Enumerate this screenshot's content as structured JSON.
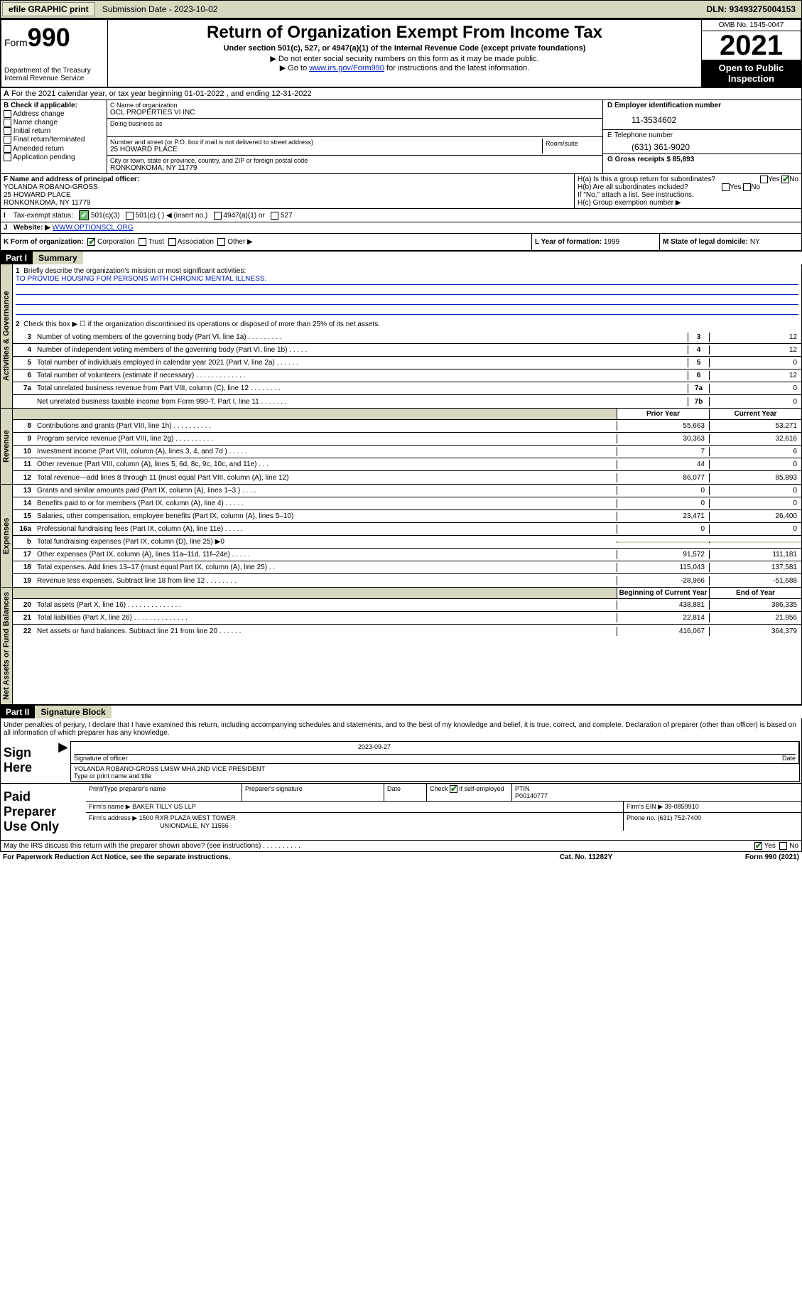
{
  "topBar": {
    "efile": "efile GRAPHIC print",
    "submission": "Submission Date - 2023-10-02",
    "dln": "DLN: 93493275004153"
  },
  "header": {
    "formWord": "Form",
    "formNum": "990",
    "dept": "Department of the Treasury Internal Revenue Service",
    "title": "Return of Organization Exempt From Income Tax",
    "sub": "Under section 501(c), 527, or 4947(a)(1) of the Internal Revenue Code (except private foundations)",
    "note1": "▶ Do not enter social security numbers on this form as it may be made public.",
    "note2a": "▶ Go to ",
    "note2link": "www.irs.gov/Form990",
    "note2b": " for instructions and the latest information.",
    "omb": "OMB No. 1545-0047",
    "year": "2021",
    "open": "Open to Public Inspection"
  },
  "rowA": "For the 2021 calendar year, or tax year beginning 01-01-2022   , and ending 12-31-2022",
  "boxB": {
    "label": "B Check if applicable:",
    "items": [
      "Address change",
      "Name change",
      "Initial return",
      "Final return/terminated",
      "Amended return",
      "Application pending"
    ]
  },
  "boxC": {
    "nameLbl": "C Name of organization",
    "name": "OCL PROPERTIES VI INC",
    "dbaLbl": "Doing business as",
    "streetLbl": "Number and street (or P.O. box if mail is not delivered to street address)",
    "street": "25 HOWARD PLACE",
    "roomLbl": "Room/suite",
    "cityLbl": "City or town, state or province, country, and ZIP or foreign postal code",
    "city": "RONKONKOMA, NY  11779"
  },
  "boxD": {
    "einLbl": "D Employer identification number",
    "ein": "11-3534602",
    "phoneLbl": "E Telephone number",
    "phone": "(631) 361-9020",
    "grossLbl": "G Gross receipts $ ",
    "gross": "85,893"
  },
  "boxF": {
    "lbl": "F Name and address of principal officer:",
    "name": "YOLANDA ROBANO-GROSS",
    "addr1": "25 HOWARD PLACE",
    "addr2": "RONKONKOMA, NY  11779"
  },
  "boxH": {
    "ha": "H(a)  Is this a group return for subordinates?",
    "hb": "H(b)  Are all subordinates included?",
    "hbNote": "If \"No,\" attach a list. See instructions.",
    "hc": "H(c)  Group exemption number ▶"
  },
  "rowI": {
    "lbl": "Tax-exempt status:",
    "o1": "501(c)(3)",
    "o2": "501(c) (  ) ◀ (insert no.)",
    "o3": "4947(a)(1) or",
    "o4": "527"
  },
  "rowJ": {
    "lbl": "Website: ▶",
    "val": "WWW.OPTIONSCL.ORG"
  },
  "rowK": {
    "k1": "K Form of organization:",
    "corp": "Corporation",
    "trust": "Trust",
    "assoc": "Association",
    "other": "Other ▶",
    "k2lbl": "L Year of formation: ",
    "k2val": "1999",
    "k3lbl": "M State of legal domicile: ",
    "k3val": "NY"
  },
  "part1": {
    "hdr": "Part I",
    "title": "Summary"
  },
  "mission": {
    "q1": "Briefly describe the organization's mission or most significant activities:",
    "text": "TO PROVIDE HOUSING FOR PERSONS WITH CHRONIC MENTAL ILLNESS.",
    "q2": "Check this box ▶ ☐  if the organization discontinued its operations or disposed of more than 25% of its net assets."
  },
  "govRows": [
    {
      "n": "3",
      "t": "Number of voting members of the governing body (Part VI, line 1a)   .    .    .    .    .    .    .    .    .",
      "b": "3",
      "v": "12"
    },
    {
      "n": "4",
      "t": "Number of independent voting members of the governing body (Part VI, line 1b)   .    .    .    .    .",
      "b": "4",
      "v": "12"
    },
    {
      "n": "5",
      "t": "Total number of individuals employed in calendar year 2021 (Part V, line 2a)   .    .    .    .    .    .",
      "b": "5",
      "v": "0"
    },
    {
      "n": "6",
      "t": "Total number of volunteers (estimate if necessary)   .    .    .    .    .    .    .    .    .    .    .    .    .",
      "b": "6",
      "v": "12"
    },
    {
      "n": "7a",
      "t": "Total unrelated business revenue from Part VIII, column (C), line 12   .    .    .    .    .    .    .    .",
      "b": "7a",
      "v": "0"
    },
    {
      "n": "",
      "t": "Net unrelated business taxable income from Form 990-T, Part I, line 11   .    .    .    .    .    .    .",
      "b": "7b",
      "v": "0"
    }
  ],
  "revHdr": {
    "prior": "Prior Year",
    "curr": "Current Year"
  },
  "revRows": [
    {
      "n": "8",
      "t": "Contributions and grants (Part VIII, line 1h)   .    .    .    .    .    .    .    .    .    .",
      "p": "55,663",
      "c": "53,271"
    },
    {
      "n": "9",
      "t": "Program service revenue (Part VIII, line 2g)   .    .    .    .    .    .    .    .    .    .",
      "p": "30,363",
      "c": "32,616"
    },
    {
      "n": "10",
      "t": "Investment income (Part VIII, column (A), lines 3, 4, and 7d )   .    .    .    .    .",
      "p": "7",
      "c": "6"
    },
    {
      "n": "11",
      "t": "Other revenue (Part VIII, column (A), lines 5, 6d, 8c, 9c, 10c, and 11e)   .    .    .",
      "p": "44",
      "c": "0"
    },
    {
      "n": "12",
      "t": "Total revenue—add lines 8 through 11 (must equal Part VIII, column (A), line 12)",
      "p": "86,077",
      "c": "85,893"
    }
  ],
  "expRows": [
    {
      "n": "13",
      "t": "Grants and similar amounts paid (Part IX, column (A), lines 1–3 )   .    .    .    .",
      "p": "0",
      "c": "0"
    },
    {
      "n": "14",
      "t": "Benefits paid to or for members (Part IX, column (A), line 4)   .    .    .    .    .",
      "p": "0",
      "c": "0"
    },
    {
      "n": "15",
      "t": "Salaries, other compensation, employee benefits (Part IX, column (A), lines 5–10)",
      "p": "23,471",
      "c": "26,400"
    },
    {
      "n": "16a",
      "t": "Professional fundraising fees (Part IX, column (A), line 11e)   .    .    .    .    .",
      "p": "0",
      "c": "0"
    },
    {
      "n": "b",
      "t": "Total fundraising expenses (Part IX, column (D), line 25) ▶0",
      "p": "",
      "c": "",
      "shade": true
    },
    {
      "n": "17",
      "t": "Other expenses (Part IX, column (A), lines 11a–11d, 11f–24e)   .    .    .    .    .",
      "p": "91,572",
      "c": "111,181"
    },
    {
      "n": "18",
      "t": "Total expenses. Add lines 13–17 (must equal Part IX, column (A), line 25)   .    .",
      "p": "115,043",
      "c": "137,581"
    },
    {
      "n": "19",
      "t": "Revenue less expenses. Subtract line 18 from line 12   .    .    .    .    .    .    .    .",
      "p": "-28,966",
      "c": "-51,688"
    }
  ],
  "netHdr": {
    "begin": "Beginning of Current Year",
    "end": "End of Year"
  },
  "netRows": [
    {
      "n": "20",
      "t": "Total assets (Part X, line 16)   .    .    .    .    .    .    .    .    .    .    .    .    .    .",
      "p": "438,881",
      "c": "386,335"
    },
    {
      "n": "21",
      "t": "Total liabilities (Part X, line 26)   .    .    .    .    .    .    .    .    .    .    .    .    .    .",
      "p": "22,814",
      "c": "21,956"
    },
    {
      "n": "22",
      "t": "Net assets or fund balances. Subtract line 21 from line 20   .    .    .    .    .    .",
      "p": "416,067",
      "c": "364,379"
    }
  ],
  "sideLabels": {
    "gov": "Activities & Governance",
    "rev": "Revenue",
    "exp": "Expenses",
    "net": "Net Assets or Fund Balances"
  },
  "part2": {
    "hdr": "Part II",
    "title": "Signature Block"
  },
  "sigText": "Under penalties of perjury, I declare that I have examined this return, including accompanying schedules and statements, and to the best of my knowledge and belief, it is true, correct, and complete. Declaration of preparer (other than officer) is based on all information of which preparer has any knowledge.",
  "sign": {
    "lbl": "Sign Here",
    "sigLbl": "Signature of officer",
    "date": "2023-09-27",
    "dateLbl": "Date",
    "name": "YOLANDA ROBANO-GROSS LMSW MHA  2ND VICE PRESIDENT",
    "nameLbl": "Type or print name and title"
  },
  "prep": {
    "lbl": "Paid Preparer Use Only",
    "h1": "Print/Type preparer's name",
    "h2": "Preparer's signature",
    "h3": "Date",
    "h4": "Check",
    "h4b": "if self-employed",
    "h5": "PTIN",
    "ptin": "P00140777",
    "firmLbl": "Firm's name    ▶",
    "firm": "BAKER TILLY US LLP",
    "einLbl": "Firm's EIN ▶",
    "ein": "39-0859910",
    "addrLbl": "Firm's address ▶",
    "addr1": "1500 RXR PLAZA WEST TOWER",
    "addr2": "UNIONDALE, NY  11556",
    "phoneLbl": "Phone no. ",
    "phone": "(631) 752-7400"
  },
  "discuss": "May the IRS discuss this return with the preparer shown above? (see instructions)   .    .    .    .    .    .    .    .    .    .",
  "footer": {
    "f1": "For Paperwork Reduction Act Notice, see the separate instructions.",
    "f2": "Cat. No. 11282Y",
    "f3": "Form 990 (2021)"
  },
  "yesNo": {
    "yes": "Yes",
    "no": "No"
  }
}
